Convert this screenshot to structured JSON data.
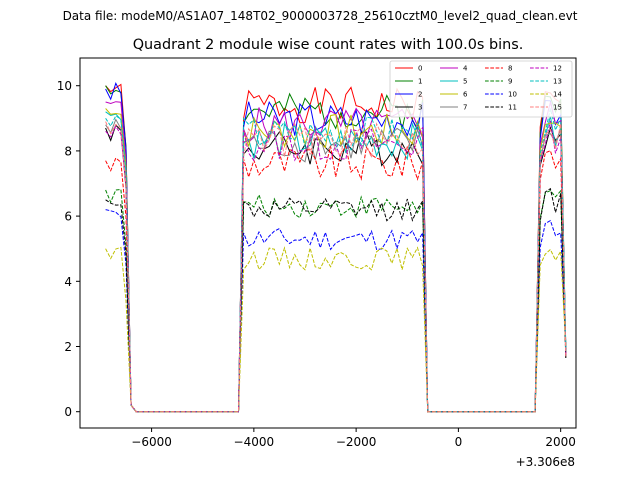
{
  "figure": {
    "suptitle": "Data file: modeM0/AS1A07_148T02_9000003728_25610cztM0_level2_quad_clean.evt",
    "title": "Quadrant 2 module wise count rates with 100.0s bins."
  },
  "chart_data": {
    "type": "line",
    "title": "Quadrant 2 module wise count rates with 100.0s bins.",
    "xlabel": "",
    "ylabel": "",
    "x_offset_label": "+3.306e8",
    "x_offset": 330600000,
    "xlim": [
      -7400,
      2300
    ],
    "ylim": [
      -0.5,
      10.85
    ],
    "xticks": [
      -6000,
      -4000,
      -2000,
      0,
      2000
    ],
    "xtick_labels": [
      "−6000",
      "−4000",
      "−2000",
      "0",
      "2000"
    ],
    "yticks": [
      0,
      2,
      4,
      6,
      8,
      10
    ],
    "ytick_labels": [
      "0",
      "2",
      "4",
      "6",
      "8",
      "10"
    ],
    "grid": false,
    "legend_position": "top-right",
    "legend_columns": 4,
    "segments": [
      {
        "start": -6900,
        "flat_start": -6700,
        "flat_end": -6500,
        "drop_end": -6300
      },
      {
        "rise_start": -4300,
        "rise_end": -4200,
        "start": -4200,
        "end": -700,
        "drop_end": -600
      },
      {
        "rise_start": 1500,
        "rise_end": 1600,
        "end": 2100
      }
    ],
    "series": [
      {
        "name": "0",
        "color": "#ff0000",
        "dash": "solid",
        "level": 9.4,
        "start": 10.0
      },
      {
        "name": "1",
        "color": "#008000",
        "dash": "solid",
        "level": 9.2,
        "start": 10.0
      },
      {
        "name": "2",
        "color": "#0000ff",
        "dash": "solid",
        "level": 9.0,
        "start": 9.9
      },
      {
        "name": "3",
        "color": "#000000",
        "dash": "solid",
        "level": 8.1,
        "start": 8.7
      },
      {
        "name": "4",
        "color": "#bf00bf",
        "dash": "solid",
        "level": 8.8,
        "start": 9.5
      },
      {
        "name": "5",
        "color": "#00bfbf",
        "dash": "solid",
        "level": 8.3,
        "start": 9.2
      },
      {
        "name": "6",
        "color": "#bfbf00",
        "dash": "solid",
        "level": 8.6,
        "start": 9.3
      },
      {
        "name": "7",
        "color": "#808080",
        "dash": "solid",
        "level": 8.2,
        "start": 8.8
      },
      {
        "name": "8",
        "color": "#ff0000",
        "dash": "dashed",
        "level": 7.6,
        "start": 7.7
      },
      {
        "name": "9",
        "color": "#008000",
        "dash": "dashed",
        "level": 6.3,
        "start": 6.8
      },
      {
        "name": "10",
        "color": "#0000ff",
        "dash": "dashed",
        "level": 5.3,
        "start": 6.2
      },
      {
        "name": "11",
        "color": "#000000",
        "dash": "dashed",
        "level": 6.2,
        "start": 6.5
      },
      {
        "name": "12",
        "color": "#bf00bf",
        "dash": "dashed",
        "level": 8.2,
        "start": 8.6
      },
      {
        "name": "13",
        "color": "#00bfbf",
        "dash": "dashed",
        "level": 8.5,
        "start": 9.0
      },
      {
        "name": "14",
        "color": "#bfbf00",
        "dash": "dashed",
        "level": 4.7,
        "start": 5.0
      },
      {
        "name": "15",
        "color": "#ff7f7f",
        "dash": "dashed",
        "level": 8.3,
        "start": 8.9
      }
    ]
  }
}
